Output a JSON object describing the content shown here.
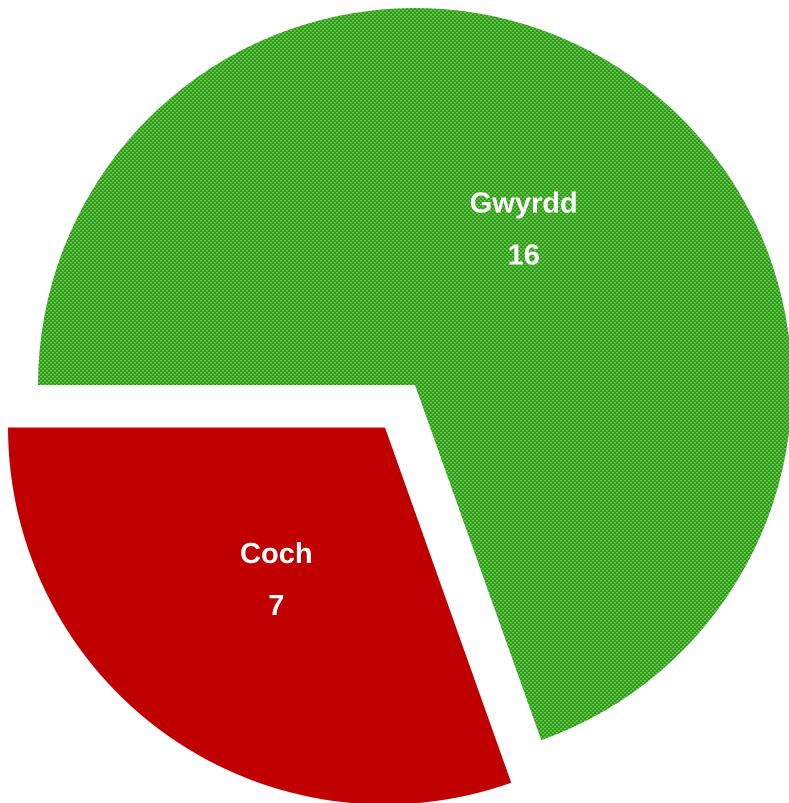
{
  "chart_data": {
    "type": "pie",
    "categories": [
      "Coch",
      "Gwyrdd"
    ],
    "values": [
      7,
      16
    ],
    "colors": [
      "#c00000",
      "#2e9b1e"
    ]
  }
}
